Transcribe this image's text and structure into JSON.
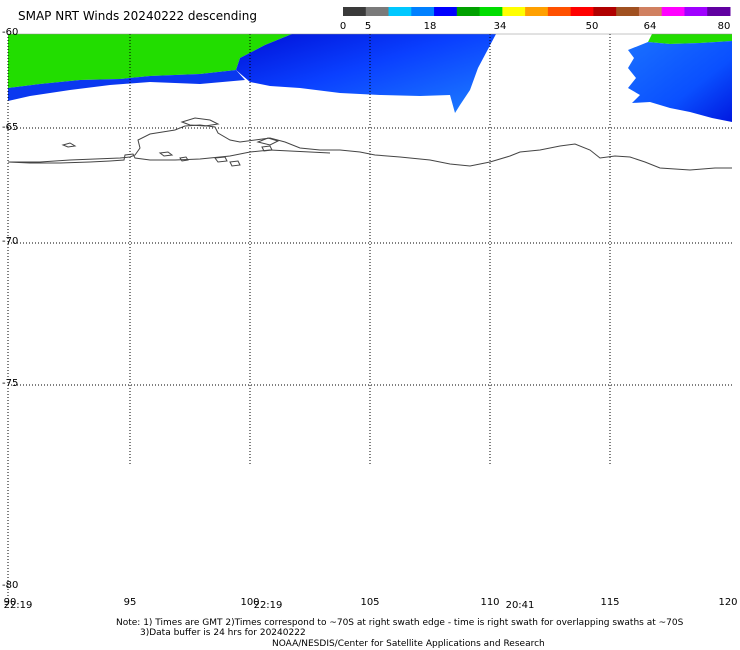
{
  "title": "SMAP NRT Winds  20240222 descending",
  "colorbar": {
    "labels": [
      "0",
      "5",
      "18",
      "34",
      "50",
      "64",
      "80"
    ],
    "colors": [
      "#3a3a3a",
      "#7a7a7a",
      "#00c8ff",
      "#0080ff",
      "#0000ff",
      "#00a000",
      "#00dd00",
      "#ffff00",
      "#ffa000",
      "#ff5000",
      "#ff0000",
      "#b00000",
      "#a05020",
      "#d08060",
      "#ff00ff",
      "#a000ff",
      "#6000a0"
    ]
  },
  "map": {
    "lat_labels": [
      "-60",
      "-65",
      "-70",
      "-75",
      "-80"
    ],
    "lon_labels": [
      "90",
      "95",
      "100",
      "105",
      "110",
      "115",
      "120"
    ],
    "times": [
      "22:19",
      "22:19",
      "20:41"
    ],
    "colors": {
      "wind_green": "#22dd00",
      "wind_blue": "#0a50ff",
      "wind_dark_blue": "#0018e0",
      "coastline": "#444444",
      "grid": "#000000"
    }
  },
  "notes": {
    "line1": "Note: 1) Times are GMT 2)Times correspond to ~70S at right swath edge - time is right swath for overlapping swaths at ~70S",
    "line2": "3)Data buffer is 24 hrs for 20240222",
    "line3": "NOAA/NESDIS/Center for Satellite Applications and Research"
  }
}
